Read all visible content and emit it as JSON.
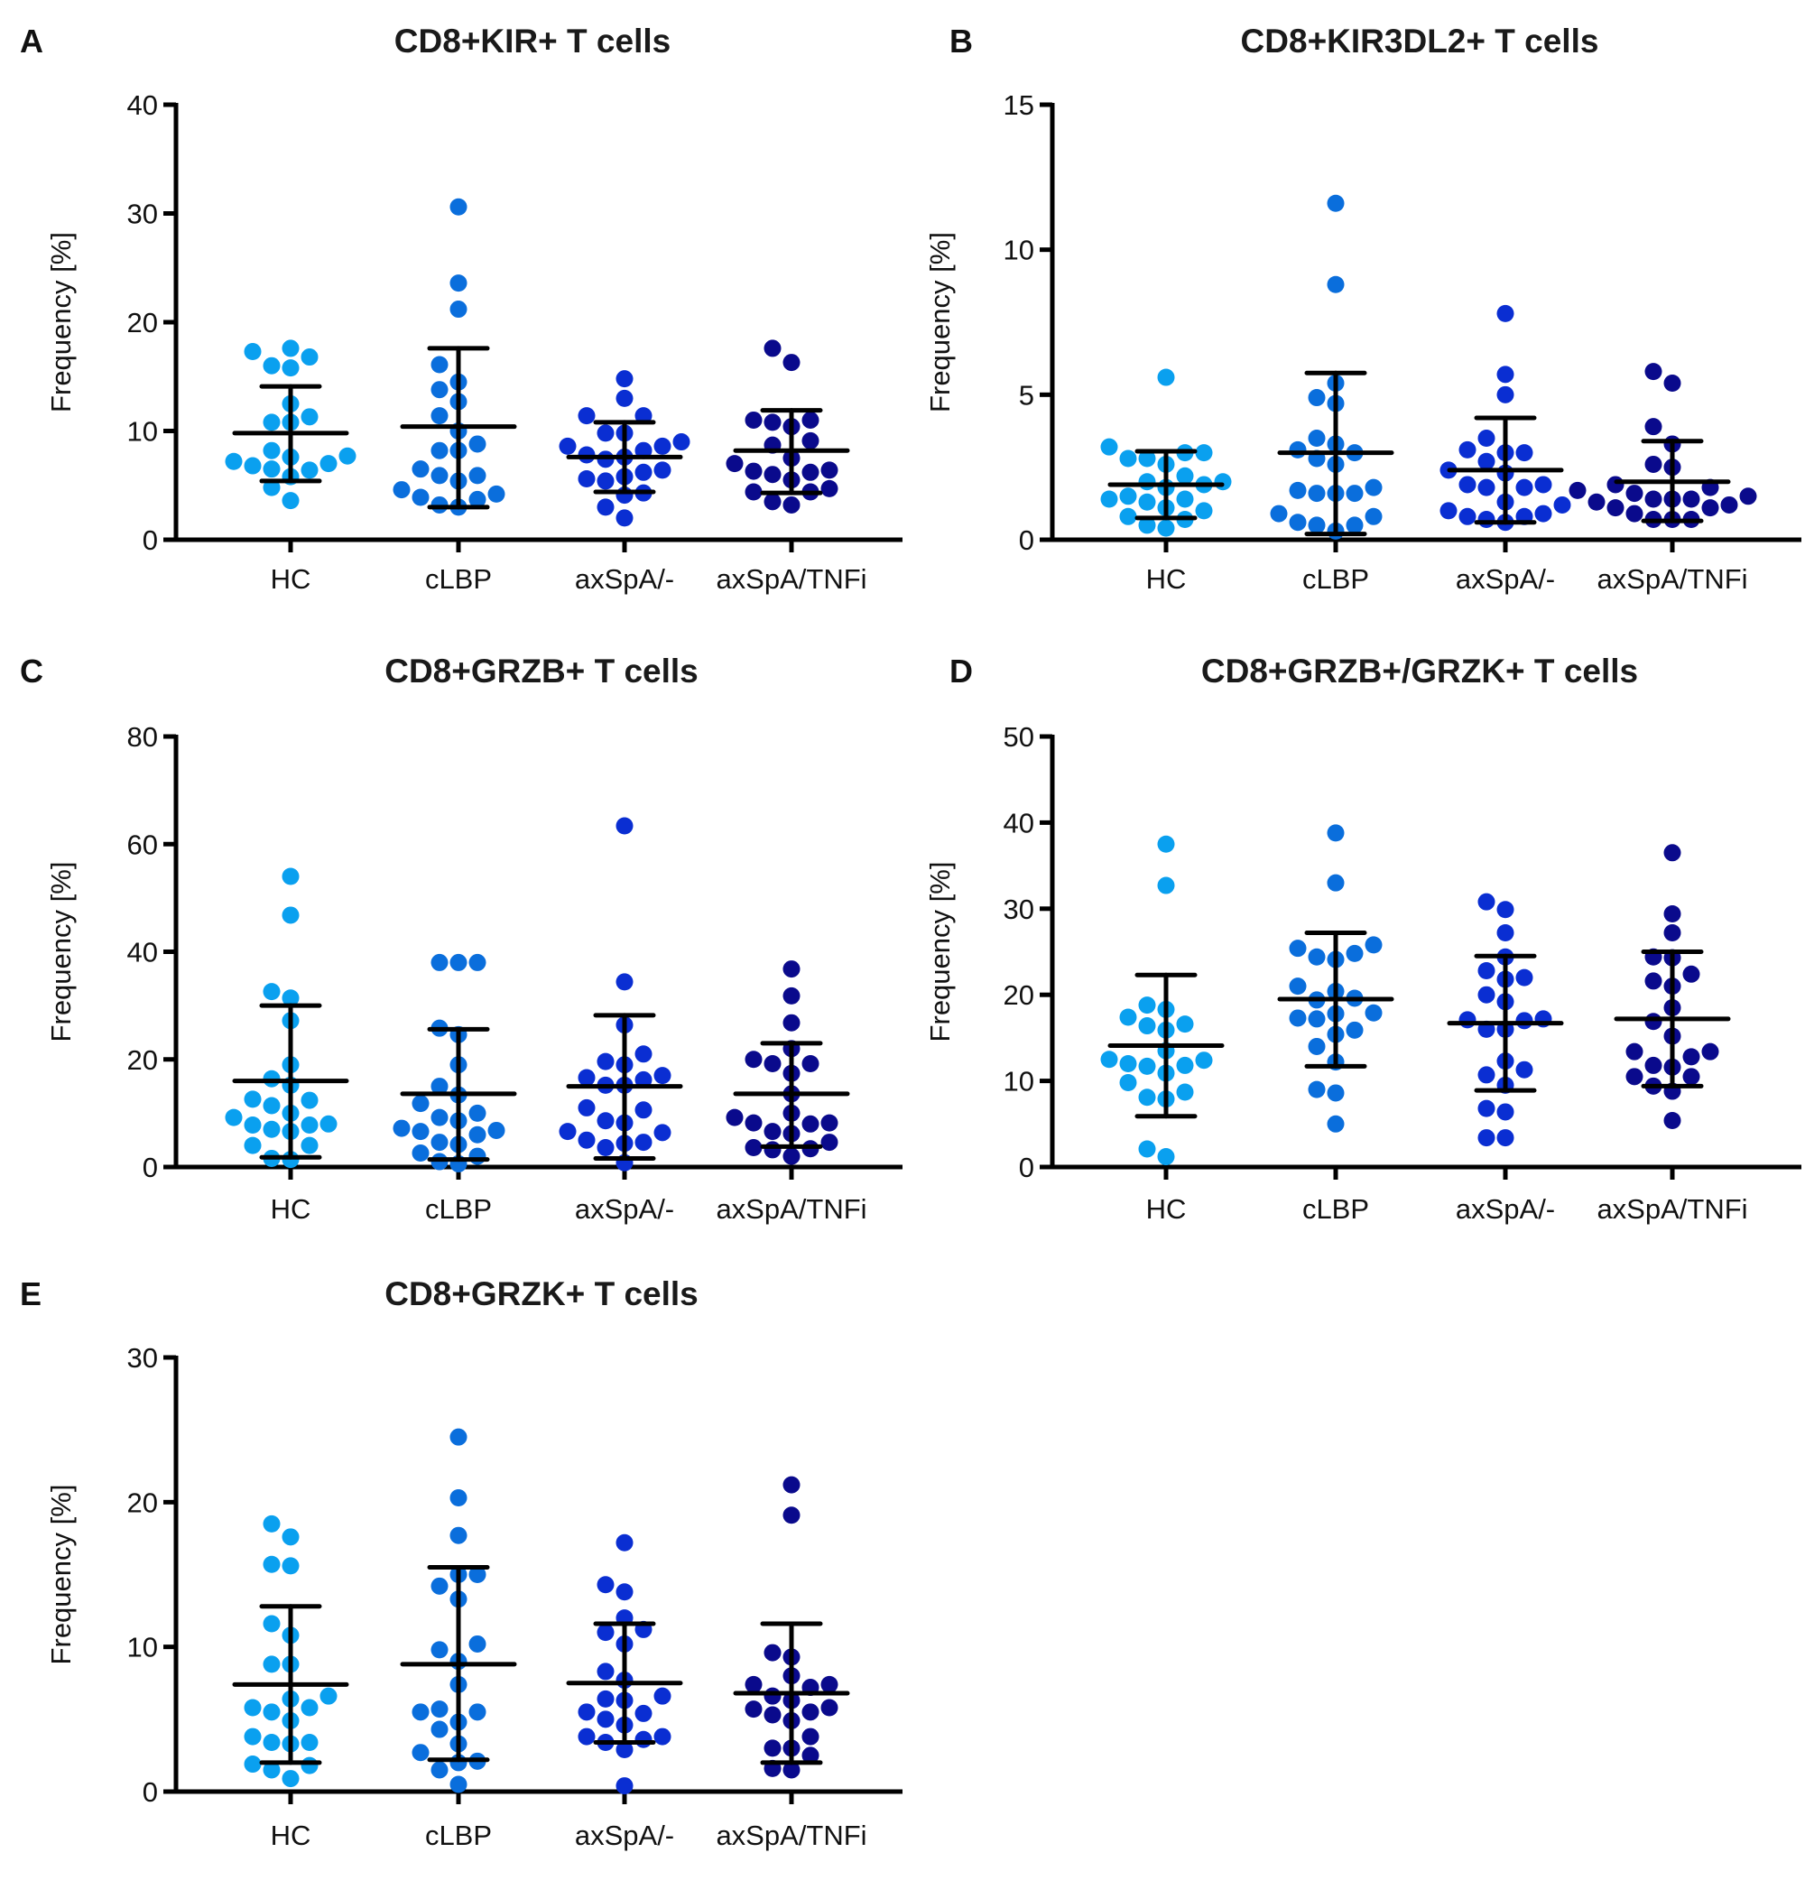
{
  "figure": {
    "groups": [
      "HC",
      "cLBP",
      "axSpA/-",
      "axSpA/TNFi"
    ],
    "group_colors": [
      "#0aa0ef",
      "#0a6edc",
      "#0a2ed2",
      "#0a0a8c"
    ],
    "ylabel": "Frequency [%]"
  },
  "chart_data": [
    {
      "panel": "A",
      "type": "scatter",
      "title": "CD8+KIR+ T cells",
      "xlabel": "",
      "ylabel": "Frequency [%]",
      "categories": [
        "HC",
        "cLBP",
        "axSpA/-",
        "axSpA/TNFi"
      ],
      "ylim": [
        0,
        40
      ],
      "yticks": [
        0,
        10,
        20,
        30,
        40
      ],
      "grid": false,
      "series": [
        {
          "name": "HC",
          "values": [
            17.6,
            17.3,
            16.8,
            16.0,
            15.8,
            12.5,
            11.3,
            10.8,
            10.8,
            8.2,
            7.7,
            7.6,
            7.2,
            7.0,
            6.8,
            6.5,
            6.4,
            5.8,
            4.8,
            3.6
          ],
          "mean": 9.8,
          "sd_low": 5.4,
          "sd_high": 14.1
        },
        {
          "name": "cLBP",
          "values": [
            30.6,
            23.6,
            21.2,
            16.1,
            14.5,
            13.8,
            12.7,
            11.4,
            10.0,
            8.8,
            8.2,
            8.2,
            6.5,
            5.9,
            5.9,
            5.4,
            4.6,
            4.2,
            3.9,
            3.7,
            3.2,
            3.0
          ],
          "mean": 10.4,
          "sd_low": 3.0,
          "sd_high": 17.6
        },
        {
          "name": "axSpA/-",
          "values": [
            14.8,
            13.0,
            11.4,
            11.4,
            9.8,
            9.8,
            9.0,
            8.6,
            8.6,
            8.2,
            7.8,
            7.6,
            7.4,
            6.4,
            6.2,
            5.8,
            5.6,
            5.4,
            4.3,
            4.1,
            3.0,
            2.0
          ],
          "mean": 7.6,
          "sd_low": 4.4,
          "sd_high": 10.8
        },
        {
          "name": "axSpA/TNFi",
          "values": [
            17.6,
            16.3,
            11.0,
            11.0,
            10.8,
            10.4,
            9.1,
            8.7,
            7.5,
            7.0,
            6.4,
            6.3,
            6.2,
            6.0,
            5.5,
            4.7,
            4.4,
            4.4,
            3.5,
            3.2
          ],
          "mean": 8.2,
          "sd_low": 4.3,
          "sd_high": 11.9
        }
      ]
    },
    {
      "panel": "B",
      "type": "scatter",
      "title": "CD8+KIR3DL2+ T cells",
      "xlabel": "",
      "ylabel": "Frequency [%]",
      "categories": [
        "HC",
        "cLBP",
        "axSpA/-",
        "axSpA/TNFi"
      ],
      "ylim": [
        0,
        15
      ],
      "yticks": [
        0,
        5,
        10,
        15
      ],
      "grid": false,
      "series": [
        {
          "name": "HC",
          "values": [
            5.6,
            3.2,
            3.0,
            3.0,
            2.8,
            2.8,
            2.6,
            2.2,
            2.0,
            2.0,
            1.9,
            1.8,
            1.5,
            1.4,
            1.4,
            1.3,
            1.1,
            1.0,
            0.8,
            0.7,
            0.5,
            0.4
          ],
          "mean": 1.9,
          "sd_low": 0.75,
          "sd_high": 3.05
        },
        {
          "name": "cLBP",
          "values": [
            11.6,
            8.8,
            5.4,
            4.9,
            4.7,
            3.5,
            3.3,
            3.1,
            3.0,
            2.8,
            2.6,
            1.8,
            1.7,
            1.6,
            1.6,
            1.6,
            0.9,
            0.8,
            0.6,
            0.5,
            0.5,
            0.3
          ],
          "mean": 3.0,
          "sd_low": 0.2,
          "sd_high": 5.75
        },
        {
          "name": "axSpA/-",
          "values": [
            7.8,
            5.7,
            5.0,
            3.5,
            3.1,
            3.0,
            3.0,
            2.7,
            2.4,
            2.3,
            1.9,
            1.9,
            1.8,
            1.8,
            1.3,
            1.2,
            1.0,
            0.9,
            0.8,
            0.8,
            0.7,
            0.6
          ],
          "mean": 2.4,
          "sd_low": 0.6,
          "sd_high": 4.2
        },
        {
          "name": "axSpA/TNFi",
          "values": [
            5.8,
            5.4,
            3.9,
            3.3,
            2.6,
            2.5,
            1.9,
            1.8,
            1.7,
            1.6,
            1.5,
            1.4,
            1.4,
            1.4,
            1.3,
            1.2,
            1.1,
            1.1,
            0.9,
            0.7,
            0.7,
            0.7
          ],
          "mean": 2.0,
          "sd_low": 0.65,
          "sd_high": 3.4
        }
      ]
    },
    {
      "panel": "C",
      "type": "scatter",
      "title": "CD8+GRZB+ T cells",
      "xlabel": "",
      "ylabel": "Frequency [%]",
      "categories": [
        "HC",
        "cLBP",
        "axSpA/-",
        "axSpA/TNFi"
      ],
      "ylim": [
        0,
        80
      ],
      "yticks": [
        0,
        20,
        40,
        60,
        80
      ],
      "grid": false,
      "series": [
        {
          "name": "HC",
          "values": [
            54.0,
            46.8,
            32.6,
            31.4,
            27.2,
            19.0,
            16.4,
            15.2,
            12.6,
            12.4,
            11.4,
            10.0,
            9.2,
            8.0,
            7.8,
            7.8,
            7.0,
            6.6,
            4.0,
            4.0,
            1.6,
            1.4
          ],
          "mean": 16.0,
          "sd_low": 1.8,
          "sd_high": 30.0
        },
        {
          "name": "cLBP",
          "values": [
            38.0,
            38.0,
            38.0,
            25.8,
            24.6,
            19.0,
            15.0,
            13.4,
            11.8,
            10.0,
            9.2,
            8.6,
            7.2,
            6.8,
            6.6,
            6.0,
            4.6,
            4.2,
            2.6,
            2.0,
            1.0,
            0.6
          ],
          "mean": 13.6,
          "sd_low": 1.4,
          "sd_high": 25.6
        },
        {
          "name": "axSpA/-",
          "values": [
            63.4,
            34.4,
            26.4,
            21.0,
            19.6,
            19.0,
            17.0,
            16.6,
            16.2,
            15.2,
            15.2,
            11.0,
            10.6,
            8.6,
            8.2,
            6.6,
            6.4,
            5.0,
            4.6,
            4.4,
            3.6,
            0.8
          ],
          "mean": 15.0,
          "sd_low": 1.6,
          "sd_high": 28.2
        },
        {
          "name": "axSpA/TNFi",
          "values": [
            36.8,
            31.8,
            26.8,
            22.0,
            20.0,
            19.2,
            19.2,
            17.4,
            13.6,
            10.0,
            9.2,
            8.2,
            8.2,
            8.0,
            6.6,
            6.2,
            4.6,
            3.6,
            3.4,
            3.2,
            2.0
          ],
          "mean": 13.6,
          "sd_low": 3.8,
          "sd_high": 23.0
        }
      ]
    },
    {
      "panel": "D",
      "type": "scatter",
      "title": "CD8+GRZB+/GRZK+ T cells",
      "xlabel": "",
      "ylabel": "Frequency [%]",
      "categories": [
        "HC",
        "cLBP",
        "axSpA/-",
        "axSpA/TNFi"
      ],
      "ylim": [
        0,
        50
      ],
      "yticks": [
        0,
        10,
        20,
        30,
        40,
        50
      ],
      "grid": false,
      "series": [
        {
          "name": "HC",
          "values": [
            37.5,
            32.7,
            18.8,
            18.3,
            17.4,
            16.6,
            16.4,
            15.9,
            13.5,
            12.5,
            12.4,
            12.0,
            11.8,
            11.7,
            10.9,
            9.8,
            8.7,
            8.1,
            7.9,
            2.1,
            1.2
          ],
          "mean": 14.1,
          "sd_low": 5.9,
          "sd_high": 22.3
        },
        {
          "name": "cLBP",
          "values": [
            38.8,
            33.0,
            25.8,
            25.4,
            24.8,
            24.4,
            24.1,
            21.0,
            20.4,
            19.6,
            19.4,
            17.9,
            17.8,
            17.3,
            17.2,
            15.9,
            15.4,
            14.0,
            12.2,
            9.0,
            8.6,
            5.0
          ],
          "mean": 19.5,
          "sd_low": 11.7,
          "sd_high": 27.2
        },
        {
          "name": "axSpA/-",
          "values": [
            30.8,
            29.9,
            27.2,
            24.4,
            22.8,
            22.0,
            21.8,
            20.0,
            19.2,
            17.2,
            17.1,
            17.0,
            16.0,
            16.0,
            12.3,
            11.3,
            10.7,
            9.5,
            6.8,
            6.4,
            3.4,
            3.4
          ],
          "mean": 16.7,
          "sd_low": 8.9,
          "sd_high": 24.5
        },
        {
          "name": "axSpA/TNFi",
          "values": [
            36.5,
            29.4,
            27.2,
            24.4,
            24.3,
            22.4,
            21.6,
            21.0,
            18.5,
            16.9,
            15.2,
            13.4,
            13.4,
            12.8,
            11.8,
            11.6,
            10.5,
            10.5,
            9.4,
            8.8,
            5.4
          ],
          "mean": 17.2,
          "sd_low": 9.4,
          "sd_high": 25.0
        }
      ]
    },
    {
      "panel": "E",
      "type": "scatter",
      "title": "CD8+GRZK+ T cells",
      "xlabel": "",
      "ylabel": "Frequency [%]",
      "categories": [
        "HC",
        "cLBP",
        "axSpA/-",
        "axSpA/TNFi"
      ],
      "ylim": [
        0,
        30
      ],
      "yticks": [
        0,
        10,
        20,
        30
      ],
      "grid": false,
      "series": [
        {
          "name": "HC",
          "values": [
            18.5,
            17.6,
            15.7,
            15.6,
            11.6,
            10.8,
            8.8,
            8.8,
            6.6,
            6.4,
            5.8,
            5.8,
            5.5,
            4.9,
            3.8,
            3.4,
            3.4,
            3.3,
            1.9,
            1.8,
            1.5,
            0.9
          ],
          "mean": 7.4,
          "sd_low": 2.0,
          "sd_high": 12.8
        },
        {
          "name": "cLBP",
          "values": [
            24.5,
            20.3,
            17.7,
            15.0,
            15.0,
            14.2,
            13.3,
            10.2,
            9.8,
            9.0,
            7.4,
            5.7,
            5.5,
            5.5,
            4.8,
            4.3,
            3.3,
            2.7,
            2.1,
            2.0,
            1.5,
            0.5
          ],
          "mean": 8.8,
          "sd_low": 2.2,
          "sd_high": 15.5
        },
        {
          "name": "axSpA/-",
          "values": [
            17.2,
            14.3,
            13.8,
            12.0,
            11.2,
            11.0,
            10.2,
            8.3,
            7.7,
            6.6,
            6.4,
            6.3,
            5.5,
            5.4,
            5.0,
            4.6,
            3.8,
            3.8,
            3.6,
            3.4,
            2.9,
            0.4
          ],
          "mean": 7.5,
          "sd_low": 3.4,
          "sd_high": 11.6
        },
        {
          "name": "axSpA/TNFi",
          "values": [
            21.2,
            19.1,
            9.6,
            9.3,
            8.0,
            7.4,
            7.4,
            7.2,
            6.6,
            6.3,
            5.8,
            5.7,
            5.5,
            5.3,
            4.9,
            3.8,
            3.0,
            3.0,
            2.5,
            1.6,
            1.5
          ],
          "mean": 6.8,
          "sd_low": 2.0,
          "sd_high": 11.6
        }
      ]
    }
  ]
}
